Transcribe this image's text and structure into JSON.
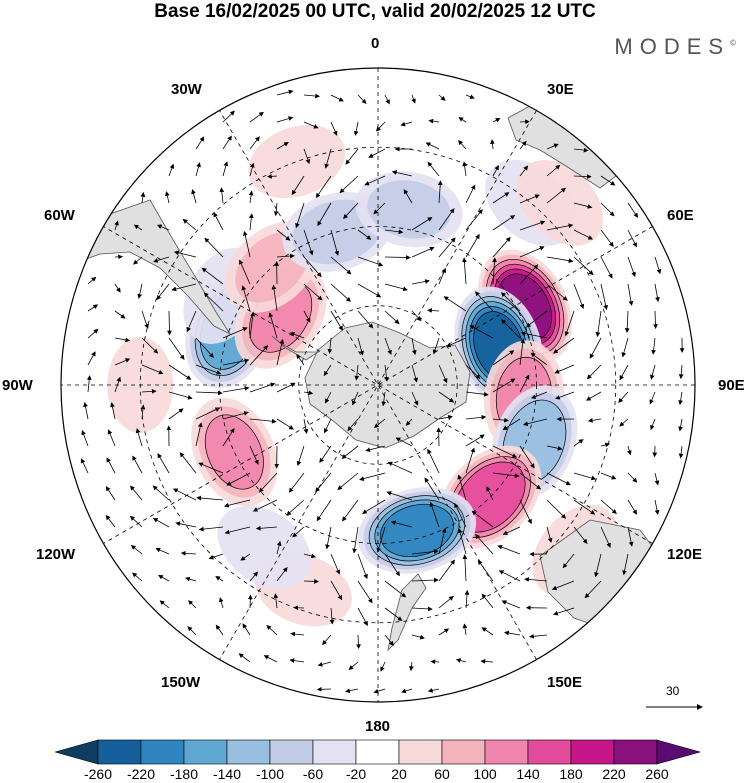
{
  "title": "Base 16/02/2025 00 UTC, valid 20/02/2025 12 UTC",
  "brand": "MODES",
  "brand_mark": "©",
  "longitude_labels": {
    "0": "0",
    "30E": "30E",
    "60E": "60E",
    "90E": "90E",
    "120E": "120E",
    "150E": "150E",
    "180": "180",
    "150W": "150W",
    "120W": "120W",
    "90W": "90W",
    "60W": "60W",
    "30W": "30W"
  },
  "vector_scale": "30",
  "colorbar": {
    "ticks": [
      "-260",
      "-220",
      "-180",
      "-140",
      "-100",
      "-60",
      "-20",
      "20",
      "60",
      "100",
      "140",
      "180",
      "220",
      "260"
    ],
    "colors": [
      "#0d3e5f",
      "#15609b",
      "#2f86bf",
      "#5ea8d3",
      "#97bfe0",
      "#c3cce7",
      "#e4e2f2",
      "#ffffff",
      "#f9dada",
      "#f5b3bd",
      "#f085ad",
      "#e54b9c",
      "#c71689",
      "#8a117e",
      "#5a0b72"
    ]
  },
  "anomalies": [
    {
      "lon": 62,
      "lat": -48,
      "value": 240
    },
    {
      "lon": 72,
      "lat": -58,
      "value": -240
    },
    {
      "lon": 95,
      "lat": -53,
      "value": 130
    },
    {
      "lon": 110,
      "lat": -48,
      "value": -150
    },
    {
      "lon": 135,
      "lat": -50,
      "value": 190
    },
    {
      "lon": 165,
      "lat": -52,
      "value": -210
    },
    {
      "lon": 245,
      "lat": -50,
      "value": 120
    },
    {
      "lon": 290,
      "lat": -50,
      "value": -180
    },
    {
      "lon": 300,
      "lat": -45,
      "value": -60
    },
    {
      "lon": 305,
      "lat": -60,
      "value": 120
    },
    {
      "lon": 318,
      "lat": -50,
      "value": 80
    },
    {
      "lon": 345,
      "lat": -50,
      "value": -100
    },
    {
      "lon": 10,
      "lat": -45,
      "value": -80
    },
    {
      "lon": 40,
      "lat": -30,
      "value": -60
    },
    {
      "lon": 45,
      "lat": -25,
      "value": 50
    },
    {
      "lon": 340,
      "lat": -30,
      "value": 50
    },
    {
      "lon": 200,
      "lat": -35,
      "value": 50
    },
    {
      "lon": 215,
      "lat": -40,
      "value": -60
    },
    {
      "lon": 130,
      "lat": -25,
      "value": 60
    },
    {
      "lon": 270,
      "lat": -30,
      "value": 40
    }
  ]
}
